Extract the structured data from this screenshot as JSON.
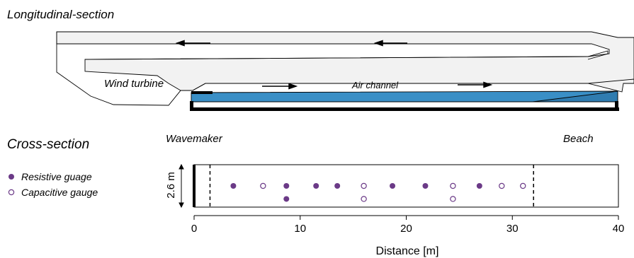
{
  "longitudinal": {
    "heading": "Longitudinal-section",
    "wind_turbine_label": "Wind turbine",
    "air_channel_label": "Air channel"
  },
  "cross": {
    "heading": "Cross-section",
    "wavemaker_label": "Wavemaker",
    "beach_label": "Beach",
    "height_label": "2.6 m",
    "legend": {
      "resistive": "Resistive guage",
      "capacitive": "Capacitive gauge"
    }
  },
  "colors": {
    "gauge": "#6b3a87",
    "water": "#3a8fc6",
    "tunnel_fill": "#f2f2f2"
  },
  "chart_data": {
    "type": "scatter",
    "xlabel": "Distance [m]",
    "xlim": [
      0,
      40
    ],
    "xticks": [
      0,
      10,
      20,
      30,
      40
    ],
    "ylim": [
      0,
      2.6
    ],
    "dashed_lines_x": [
      1.5,
      32
    ],
    "series": [
      {
        "name": "Resistive guage",
        "marker": "filled",
        "points": [
          [
            3.7,
            1.3
          ],
          [
            8.7,
            1.3
          ],
          [
            11.5,
            1.3
          ],
          [
            13.5,
            1.3
          ],
          [
            18.7,
            1.3
          ],
          [
            21.8,
            1.3
          ],
          [
            26.9,
            1.3
          ],
          [
            8.7,
            0.5
          ]
        ]
      },
      {
        "name": "Capacitive gauge",
        "marker": "open",
        "points": [
          [
            6.5,
            1.3
          ],
          [
            16.0,
            1.3
          ],
          [
            24.4,
            1.3
          ],
          [
            29.0,
            1.3
          ],
          [
            31.0,
            1.3
          ],
          [
            16.0,
            0.5
          ],
          [
            24.4,
            0.5
          ]
        ]
      }
    ]
  }
}
